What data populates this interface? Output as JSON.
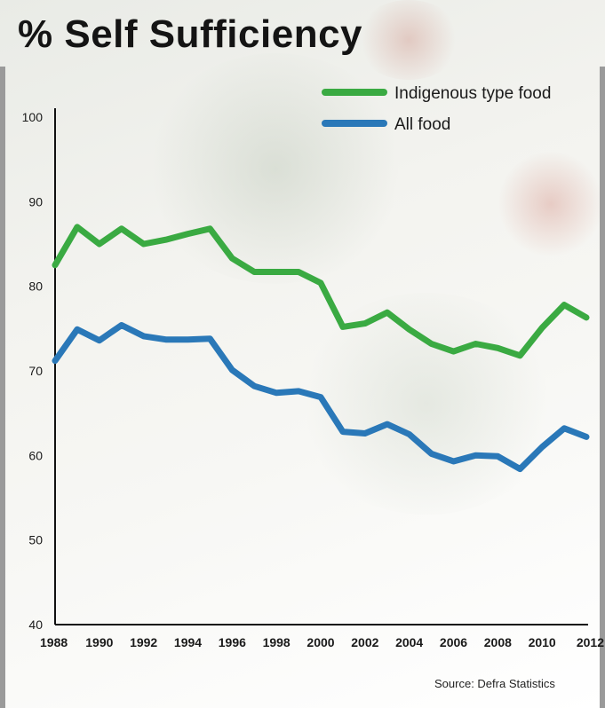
{
  "title": "% Self Sufficiency",
  "source": "Source: Defra Statistics",
  "colors": {
    "indigenous": "#3aaa42",
    "all_food": "#2a78b8",
    "axis": "#111111"
  },
  "chart_data": {
    "type": "line",
    "title": "% Self Sufficiency",
    "xlabel": "",
    "ylabel": "",
    "xlim": [
      1988,
      2012
    ],
    "ylim": [
      40,
      100
    ],
    "x_ticks": [
      1988,
      1990,
      1992,
      1994,
      1996,
      1998,
      2000,
      2002,
      2004,
      2006,
      2008,
      2010,
      2012
    ],
    "y_ticks": [
      40,
      50,
      60,
      70,
      80,
      90,
      100
    ],
    "grid": false,
    "legend_position": "top-right",
    "x": [
      1988,
      1989,
      1990,
      1991,
      1992,
      1993,
      1994,
      1995,
      1996,
      1997,
      1998,
      1999,
      2000,
      2001,
      2002,
      2003,
      2004,
      2005,
      2006,
      2007,
      2008,
      2009,
      2010,
      2011,
      2012
    ],
    "series": [
      {
        "name": "Indigenous type food",
        "color": "#3aaa42",
        "values": [
          82.5,
          87,
          85,
          86.8,
          85,
          85.5,
          86.2,
          86.8,
          83.3,
          81.7,
          81.7,
          81.7,
          80.4,
          75.2,
          75.6,
          76.9,
          74.9,
          73.2,
          72.3,
          73.2,
          72.7,
          71.8,
          75.1,
          77.8,
          76.3
        ]
      },
      {
        "name": "All food",
        "color": "#2a78b8",
        "values": [
          71.2,
          74.9,
          73.6,
          75.4,
          74.1,
          73.7,
          73.7,
          73.8,
          70.1,
          68.2,
          67.4,
          67.6,
          66.9,
          62.8,
          62.6,
          63.7,
          62.5,
          60.2,
          59.3,
          60.0,
          59.9,
          58.4,
          61.0,
          63.2,
          62.2
        ]
      }
    ]
  }
}
